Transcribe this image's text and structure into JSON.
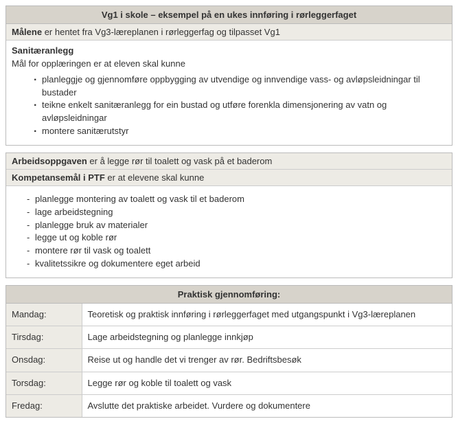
{
  "box1": {
    "title": "Vg1 i skole – eksempel på en ukes innføring i rørleggerfaget",
    "malene_bold": "Målene",
    "malene_rest": " er hentet fra Vg3-læreplanen i rørleggerfag og tilpasset Vg1",
    "section_title": "Sanitæranlegg",
    "section_intro": "Mål for opplæringen er at eleven skal kunne",
    "bullets": [
      "planleggje og gjennomføre oppbygging av utvendige og innvendige vass- og avløpsleidningar til bustader",
      "teikne enkelt sanitæranlegg for ein bustad og utføre forenkla dimensjonering av vatn og avløpsleidningar",
      "montere sanitærutstyr"
    ]
  },
  "box2": {
    "arbeid_bold": "Arbeidsoppgaven",
    "arbeid_rest": " er å legge rør til toalett og vask på et baderom",
    "komp_bold": "Kompetansemål i PTF",
    "komp_rest": " er at elevene skal kunne",
    "bullets": [
      "planlegge montering av toalett og vask til et baderom",
      "lage arbeidstegning",
      "planlegge bruk av materialer",
      "legge ut og koble rør",
      "montere rør til vask og toalett",
      "kvalitetssikre og dokumentere eget arbeid"
    ]
  },
  "box3": {
    "title": "Praktisk gjennomføring:",
    "rows": [
      {
        "day": "Mandag:",
        "text": "Teoretisk og praktisk innføring i rørleggerfaget med utgangspunkt i Vg3-læreplanen"
      },
      {
        "day": "Tirsdag:",
        "text": "Lage arbeidstegning og planlegge innkjøp"
      },
      {
        "day": "Onsdag:",
        "text": "Reise ut og handle det vi trenger av rør. Bedriftsbesøk"
      },
      {
        "day": "Torsdag:",
        "text": "Legge rør og koble til toalett og vask"
      },
      {
        "day": "Fredag:",
        "text": "Avslutte det praktiske arbeidet. Vurdere og dokumentere"
      }
    ]
  }
}
